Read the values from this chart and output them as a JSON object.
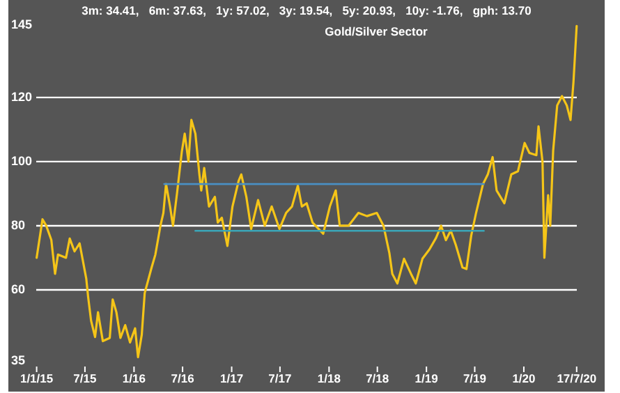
{
  "chart_data": {
    "type": "line",
    "title": "Gold/Silver Sector",
    "annotations": [
      "3m: 34.41,   6m: 37.63,   1y: 57.02,   3y: 19.54,   5y: 20.93,   10y: -1.76,   gph: 13.70"
    ],
    "xlim": [
      "2014-09-17",
      "2020-10-30"
    ],
    "xticks": [
      {
        "value": "2015-01-01",
        "label": "1/1/15"
      },
      {
        "value": "2015-07-01",
        "label": "7/15"
      },
      {
        "value": "2016-01-01",
        "label": "1/16"
      },
      {
        "value": "2016-07-01",
        "label": "7/16"
      },
      {
        "value": "2017-01-01",
        "label": "1/17"
      },
      {
        "value": "2017-07-01",
        "label": "7/17"
      },
      {
        "value": "2018-01-01",
        "label": "1/18"
      },
      {
        "value": "2018-07-01",
        "label": "7/18"
      },
      {
        "value": "2019-01-01",
        "label": "1/19"
      },
      {
        "value": "2019-07-01",
        "label": "7/19"
      },
      {
        "value": "2020-01-01",
        "label": "1/20"
      },
      {
        "value": "2020-07-17",
        "label": "17/7/20"
      }
    ],
    "ylim": [
      28.26,
      150.4
    ],
    "yticks": [
      35,
      60,
      80,
      100,
      120,
      145
    ],
    "grid": "y",
    "marker": "none",
    "line_style": "solid",
    "series": [
      {
        "color": "#f5c518",
        "x": [
          "2015-01-01",
          "2015-01-23",
          "2015-02-06",
          "2015-02-25",
          "2015-03-11",
          "2015-03-22",
          "2015-04-21",
          "2015-05-05",
          "2015-05-23",
          "2015-06-11",
          "2015-07-06",
          "2015-07-13",
          "2015-07-24",
          "2015-08-08",
          "2015-08-19",
          "2015-09-06",
          "2015-10-02",
          "2015-10-13",
          "2015-10-27",
          "2015-11-11",
          "2015-11-29",
          "2015-12-17",
          "2016-01-05",
          "2016-01-16",
          "2016-01-30",
          "2016-02-10",
          "2016-03-07",
          "2016-03-21",
          "2016-04-09",
          "2016-04-20",
          "2016-04-30",
          "2016-05-15",
          "2016-05-26",
          "2016-06-10",
          "2016-06-28",
          "2016-07-09",
          "2016-07-23",
          "2016-08-03",
          "2016-08-18",
          "2016-09-02",
          "2016-09-09",
          "2016-09-20",
          "2016-10-08",
          "2016-10-30",
          "2016-11-10",
          "2016-11-25",
          "2016-12-16",
          "2017-01-04",
          "2017-01-27",
          "2017-02-06",
          "2017-02-25",
          "2017-03-15",
          "2017-04-10",
          "2017-05-05",
          "2017-05-31",
          "2017-06-29",
          "2017-07-24",
          "2017-08-15",
          "2017-09-06",
          "2017-09-21",
          "2017-10-09",
          "2017-10-31",
          "2017-12-10",
          "2018-01-04",
          "2018-01-26",
          "2018-02-10",
          "2018-03-15",
          "2018-04-21",
          "2018-05-23",
          "2018-06-29",
          "2018-07-24",
          "2018-08-15",
          "2018-08-26",
          "2018-09-14",
          "2018-10-09",
          "2018-11-04",
          "2018-11-22",
          "2018-12-17",
          "2019-01-12",
          "2019-02-06",
          "2019-02-25",
          "2019-03-15",
          "2019-04-02",
          "2019-04-21",
          "2019-05-16",
          "2019-05-31",
          "2019-06-18",
          "2019-07-06",
          "2019-08-01",
          "2019-08-19",
          "2019-09-06",
          "2019-09-21",
          "2019-10-20",
          "2019-11-15",
          "2019-12-10",
          "2020-01-04",
          "2020-01-22",
          "2020-02-17",
          "2020-02-25",
          "2020-03-11",
          "2020-03-18",
          "2020-04-01",
          "2020-04-09",
          "2020-04-20",
          "2020-05-05",
          "2020-05-23",
          "2020-06-10",
          "2020-06-24",
          "2020-07-05",
          "2020-07-17"
        ],
        "values": [
          70,
          82,
          80,
          75.6,
          65,
          71,
          70,
          76,
          72,
          74.5,
          63.5,
          57.8,
          50.4,
          45.3,
          53,
          44,
          45,
          57,
          53,
          45,
          49,
          43.6,
          48,
          39,
          46,
          59,
          67,
          71,
          80,
          84,
          93,
          86,
          80,
          90,
          103,
          108.7,
          100,
          113,
          108.7,
          96,
          91,
          98,
          86,
          89,
          81,
          82.5,
          73.7,
          86,
          94,
          96,
          89,
          79,
          88,
          80,
          86,
          79,
          84,
          86,
          92.5,
          86,
          87,
          81,
          77.5,
          86,
          91,
          80,
          80,
          84,
          83,
          84,
          80,
          71.5,
          65,
          62,
          69.7,
          65,
          62,
          69.7,
          72.6,
          76.2,
          80,
          75.5,
          78.5,
          74,
          67,
          66.5,
          77,
          84,
          93,
          96,
          101.4,
          91,
          87,
          96,
          97,
          105.8,
          102.7,
          102,
          111,
          100,
          70,
          89.5,
          80,
          103.5,
          117.5,
          120.4,
          117.5,
          113,
          124.8,
          142.3
        ]
      },
      {
        "color": "#4a8fc4",
        "x": [
          "2016-04-23",
          "2019-08-04"
        ],
        "values": [
          93,
          93
        ]
      },
      {
        "color": "#3aa6b8",
        "x": [
          "2016-08-18",
          "2019-08-04"
        ],
        "values": [
          78.4,
          78.4
        ]
      }
    ]
  }
}
